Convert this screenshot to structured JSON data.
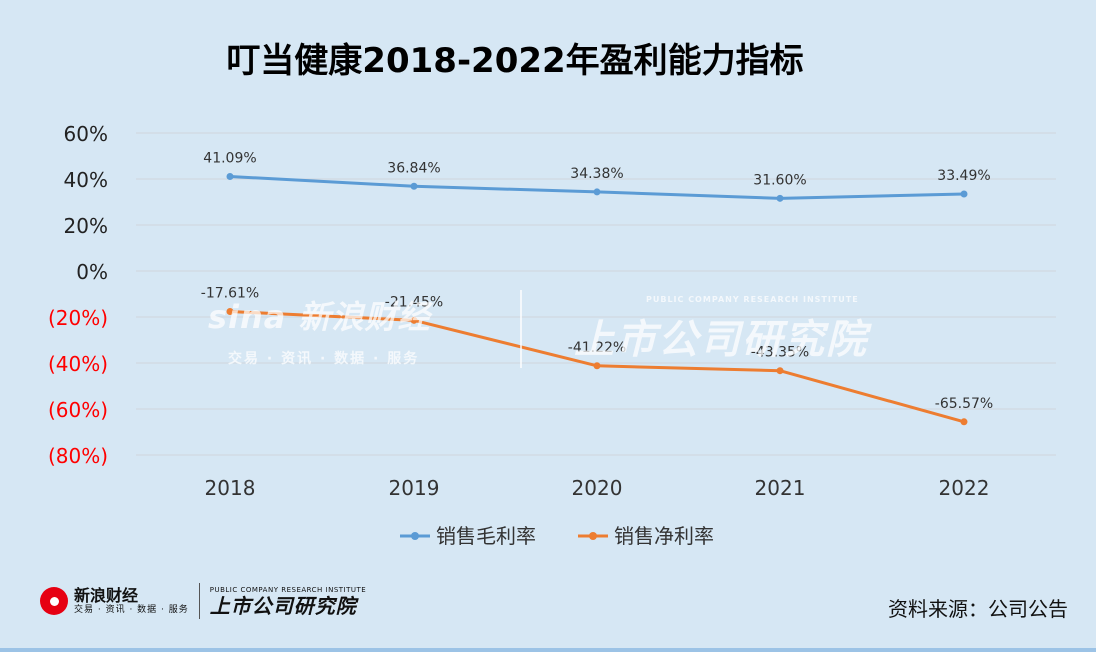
{
  "footer": {
    "source": "资料来源：公司公告"
  },
  "brand": {
    "sina_name": "新浪财经",
    "sina_sub": "交易 · 资讯 · 数据 · 服务",
    "institute_en": "PUBLIC COMPANY RESEARCH INSTITUTE",
    "institute_name": "上市公司研究院"
  },
  "watermark": {
    "sina_main": "sina 新浪财经",
    "sina_sub": "交易 · 资讯 · 数据 · 服务",
    "institute_name": "上市公司研究院",
    "institute_en": "PUBLIC COMPANY RESEARCH INSTITUTE"
  },
  "chart_data": {
    "type": "line",
    "title": "叮当健康2018-2022年盈利能力指标",
    "categories": [
      "2018",
      "2019",
      "2020",
      "2021",
      "2022"
    ],
    "y_ticks": [
      60,
      40,
      20,
      0,
      -20,
      -40,
      -60,
      -80
    ],
    "y_tick_labels": [
      "60%",
      "40%",
      "20%",
      "0%",
      "(20%)",
      "(40%)",
      "(60%)",
      "(80%)"
    ],
    "ylim": [
      -80,
      60
    ],
    "grid": true,
    "legend_position": "bottom",
    "colors": {
      "series_1": "#5b9bd5",
      "series_2": "#ed7d31",
      "negative_axis_label": "#ff0000"
    },
    "series": [
      {
        "name": "销售毛利率",
        "values": [
          41.09,
          36.84,
          34.38,
          31.6,
          33.49
        ],
        "labels": [
          "41.09%",
          "36.84%",
          "34.38%",
          "31.60%",
          "33.49%"
        ]
      },
      {
        "name": "销售净利率",
        "values": [
          -17.61,
          -21.45,
          -41.22,
          -43.35,
          -65.57
        ],
        "labels": [
          "-17.61%",
          "-21.45%",
          "-41.22%",
          "-43.35%",
          "-65.57%"
        ]
      }
    ]
  }
}
